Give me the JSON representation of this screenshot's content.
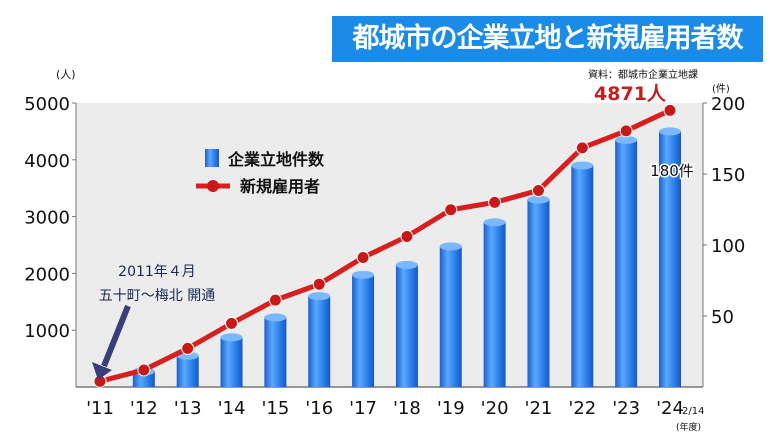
{
  "chart_data": {
    "type": "bar+line",
    "title": "都城市の企業立地と新規雇用者数",
    "source": "資料：都城市企業立地課",
    "categories": [
      "'11",
      "'12",
      "'13",
      "'14",
      "'15",
      "'16",
      "'17",
      "'18",
      "'19",
      "'20",
      "'21",
      "'22",
      "'23",
      "'24"
    ],
    "last_category_note": "2/14",
    "xlabel": "(年度)",
    "ylabel_left": "(人)",
    "ylabel_right": "(件)",
    "ylim_left": [
      0,
      5000
    ],
    "ylim_right": [
      0,
      200
    ],
    "yticks_left": [
      "1000",
      "2000",
      "3000",
      "4000",
      "5000"
    ],
    "yticks_right": [
      "50",
      "100",
      "150",
      "200"
    ],
    "series": [
      {
        "name": "企業立地件数",
        "type": "bar",
        "axis": "right",
        "color": "#2a7fe8",
        "values": [
          0,
          11,
          22,
          35,
          49,
          64,
          79,
          86,
          99,
          116,
          132,
          156,
          174,
          180
        ]
      },
      {
        "name": "新規雇用者",
        "type": "line",
        "axis": "left",
        "color": "#d81e1e",
        "values": [
          100,
          300,
          680,
          1120,
          1530,
          1810,
          2280,
          2650,
          3120,
          3250,
          3460,
          4210,
          4510,
          4871
        ]
      }
    ],
    "data_labels": {
      "line_last": "4871人",
      "bar_last": "180件"
    },
    "annotation": {
      "line1": "2011年４月",
      "line2": "五十町～梅北 開通"
    },
    "legend_placement": "top-left"
  }
}
